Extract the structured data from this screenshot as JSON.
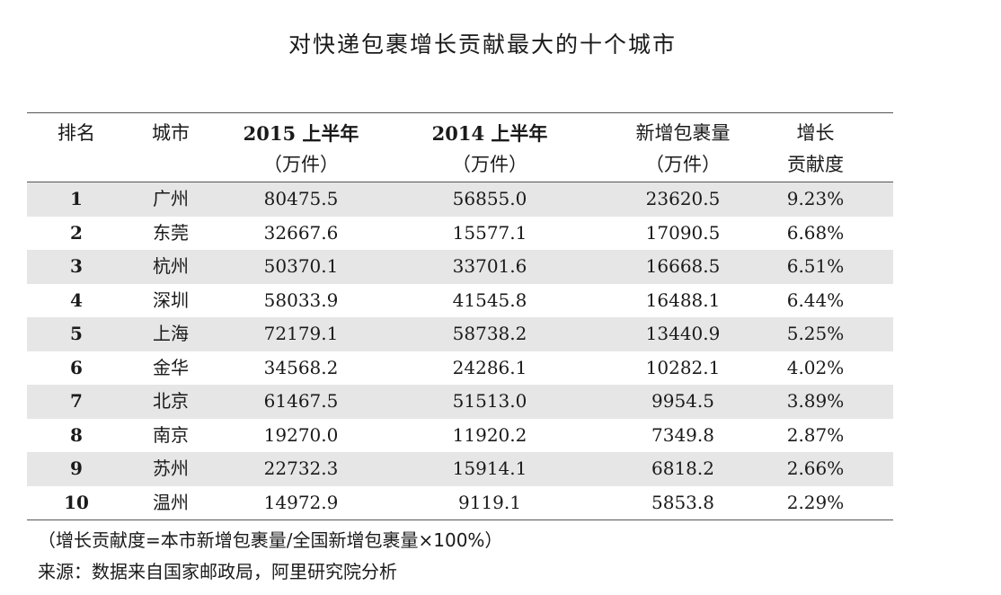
{
  "title": "对快递包裹增长贡献最大的十个城市",
  "headers": [
    [
      "排名"
    ],
    [
      "城市"
    ],
    [
      "2015 上半年",
      "（万件）"
    ],
    [
      "2014 上半年",
      "（万件）"
    ],
    [
      "新增包裹量",
      "（万件）"
    ],
    [
      "增长",
      "贡献度"
    ]
  ],
  "rows": [
    [
      "1",
      "广州",
      "80475.5",
      "56855.0",
      "23620.5",
      "9.23%"
    ],
    [
      "2",
      "东莞",
      "32667.6",
      "15577.1",
      "17090.5",
      "6.68%"
    ],
    [
      "3",
      "杭州",
      "50370.1",
      "33701.6",
      "16668.5",
      "6.51%"
    ],
    [
      "4",
      "深圳",
      "58033.9",
      "41545.8",
      "16488.1",
      "6.44%"
    ],
    [
      "5",
      "上海",
      "72179.1",
      "58738.2",
      "13440.9",
      "5.25%"
    ],
    [
      "6",
      "金华",
      "34568.2",
      "24286.1",
      "10282.1",
      "4.02%"
    ],
    [
      "7",
      "北京",
      "61467.5",
      "51513.0",
      "9954.5",
      "3.89%"
    ],
    [
      "8",
      "南京",
      "19270.0",
      "11920.2",
      "7349.8",
      "2.87%"
    ],
    [
      "9",
      "苏州",
      "22732.3",
      "15914.1",
      "6818.2",
      "2.66%"
    ],
    [
      "10",
      "温州",
      "14972.9",
      "9119.1",
      "5853.8",
      "2.29%"
    ]
  ],
  "note": "（增长贡献度=本市新增包裹量/全国新增包裹量×100%）",
  "source": "来源：数据来自国家邮政局，阿里研究院分析"
}
